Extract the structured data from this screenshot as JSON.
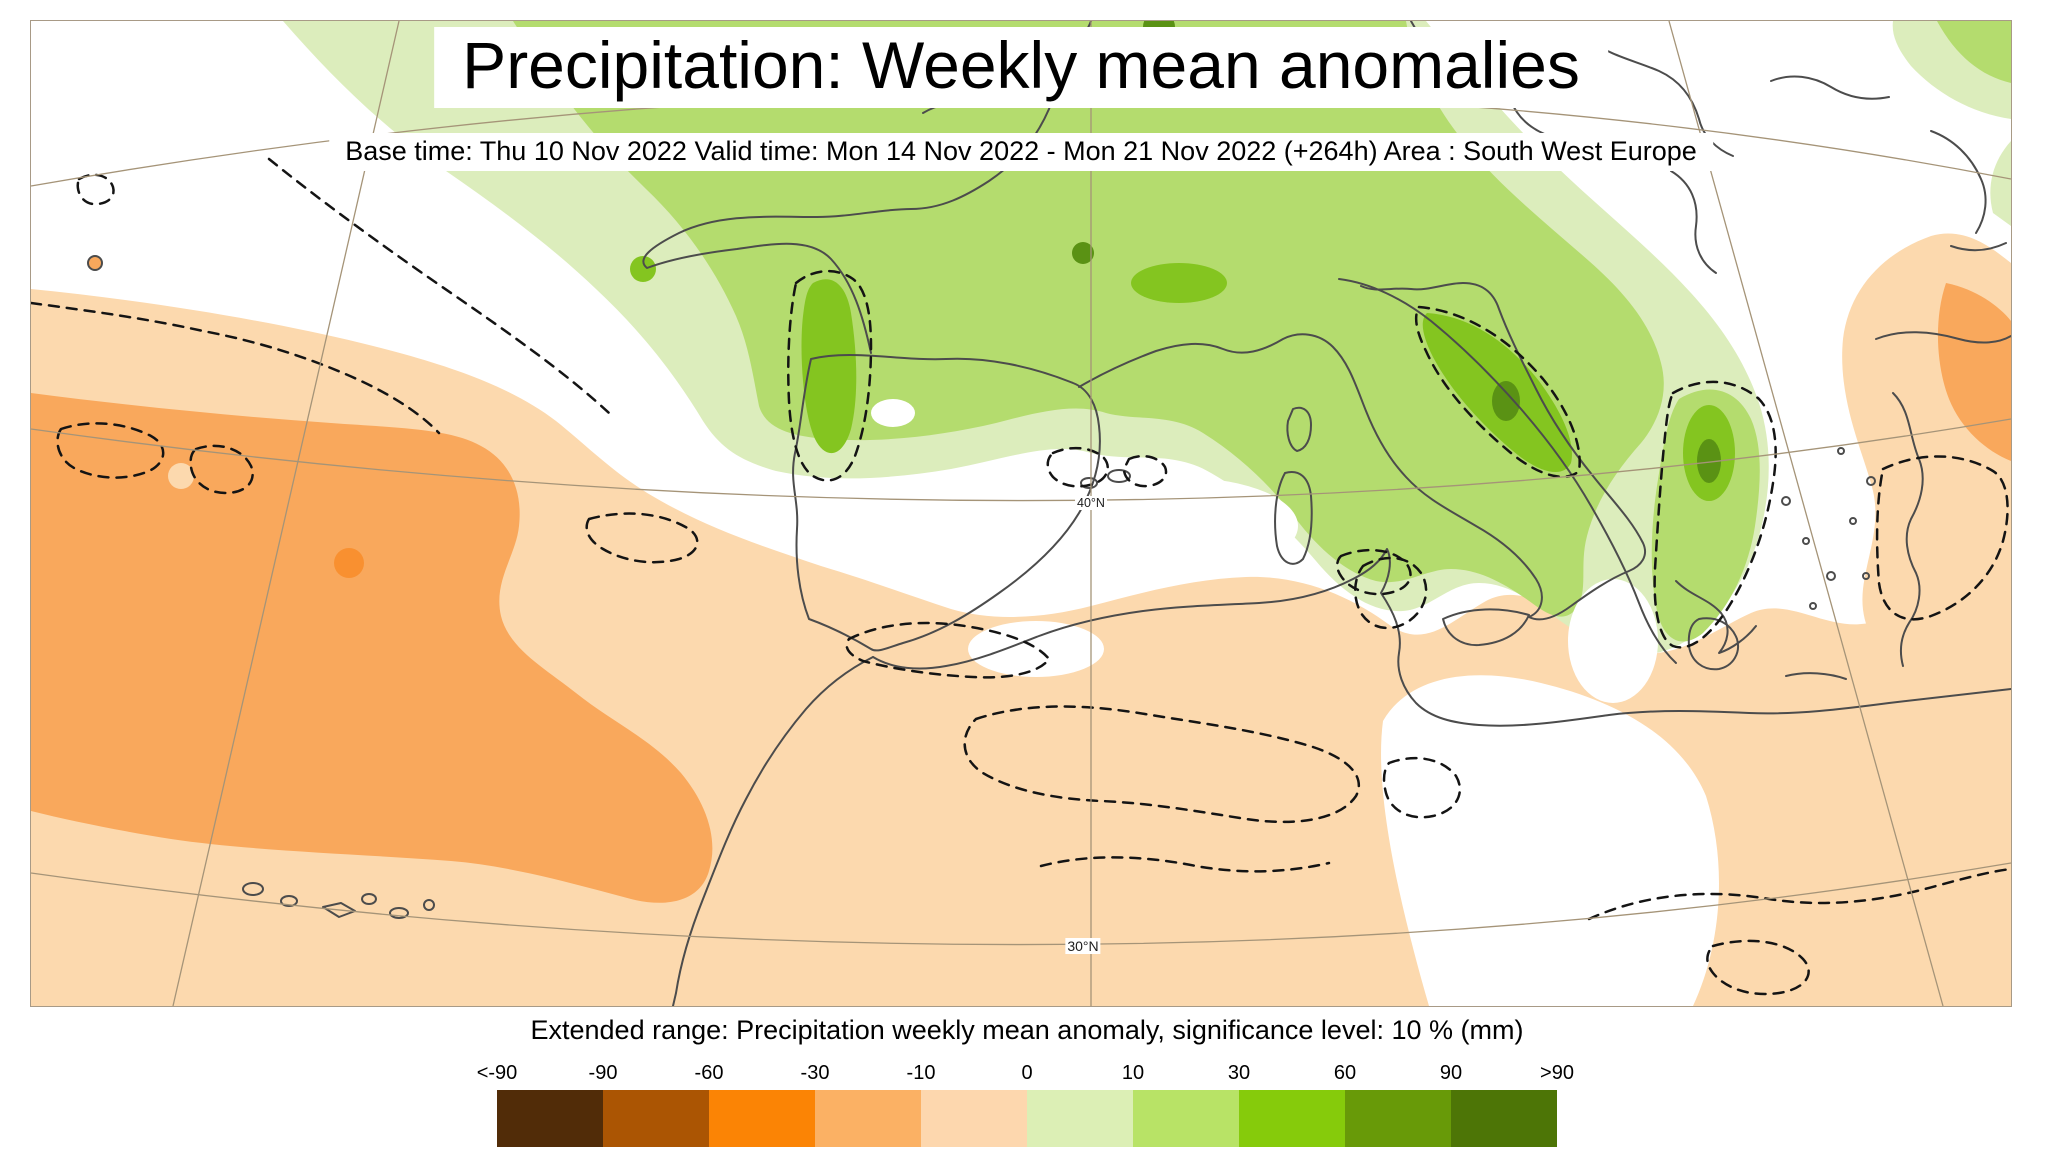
{
  "title": "Precipitation: Weekly mean anomalies",
  "subtitle": "Base time: Thu 10 Nov 2022 Valid time: Mon 14 Nov 2022 - Mon 21 Nov 2022 (+264h) Area : South West Europe",
  "map": {
    "latitude_labels": [
      {
        "text": "40°N"
      },
      {
        "text": "30°N"
      }
    ],
    "palette": {
      "anomaly_deficit_medium": "#f9a85c",
      "anomaly_deficit_light": "#fcd9ae",
      "anomaly_surplus_light": "#dcedbc",
      "anomaly_surplus_medium": "#b4dc6e",
      "anomaly_surplus_strong": "#84c520",
      "anomaly_surplus_dark": "#5a9214",
      "coastline": "#4c4c4c",
      "significance_contour": "#141414",
      "graticule": "#a59478"
    }
  },
  "legend": {
    "caption": "Extended range: Precipitation weekly mean anomaly, significance level: 10 % (mm)",
    "units": "mm",
    "tick_labels": [
      "<-90",
      "-90",
      "-60",
      "-30",
      "-10",
      "0",
      "10",
      "30",
      "60",
      "90",
      ">90"
    ],
    "colors": [
      "#512c08",
      "#ab5503",
      "#fb8405",
      "#fbb164",
      "#fdd7ae",
      "#dcefb5",
      "#b8e366",
      "#86cb0b",
      "#689a08",
      "#4d7506"
    ]
  }
}
